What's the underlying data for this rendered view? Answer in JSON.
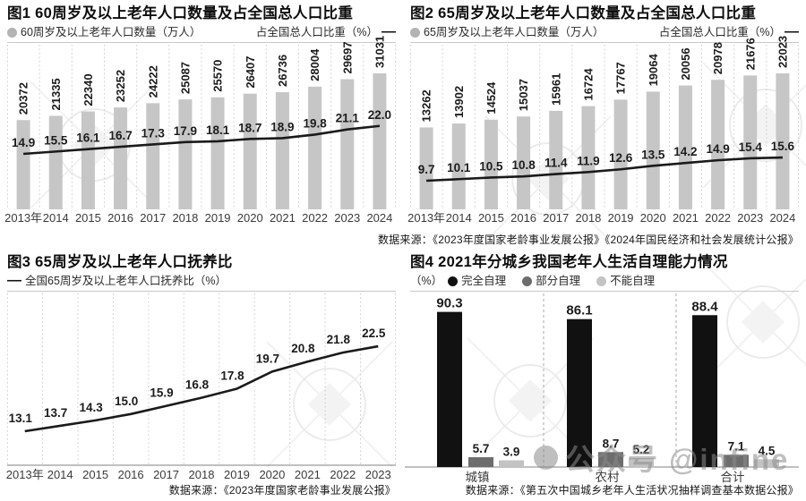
{
  "colors": {
    "bar": "#c6c6c6",
    "line": "#1a1a1a",
    "grid": "#c9c9c9",
    "axis": "#9a9a9a",
    "legend_dot": "#b3b3b3",
    "value_text": "#1c1c1c",
    "tick_text": "#3a3a3a"
  },
  "watermark": {
    "text": "公众号 @infine"
  },
  "chart_data": [
    {
      "type": "bar",
      "title": "图1 60周岁及以上老年人口数量及占全国总人口比重",
      "bar_legend": "60周岁及以上老年人口数量（万人）",
      "line_legend": "占全国总人口比重（%）",
      "categories": [
        "2013年",
        "2014",
        "2015",
        "2016",
        "2017",
        "2018",
        "2019",
        "2020",
        "2021",
        "2022",
        "2023",
        "2024"
      ],
      "bar_values": [
        20372,
        21335,
        22340,
        23252,
        24222,
        25087,
        25570,
        26407,
        26736,
        28004,
        29697,
        31031
      ],
      "line_values": [
        14.9,
        15.5,
        16.1,
        16.7,
        17.3,
        17.9,
        18.1,
        18.7,
        18.9,
        19.8,
        21.1,
        22.0
      ],
      "source": ""
    },
    {
      "type": "bar",
      "title": "图2 65周岁及以上老年人口数量及占全国总人口比重",
      "bar_legend": "65周岁及以上老年人口数量（万人）",
      "line_legend": "占全国总人口比重（%）",
      "categories": [
        "2013年",
        "2014",
        "2015",
        "2016",
        "2017",
        "2018",
        "2019",
        "2020",
        "2021",
        "2022",
        "2023",
        "2024"
      ],
      "bar_values": [
        13262,
        13902,
        14524,
        15037,
        15961,
        16724,
        17767,
        19064,
        20056,
        20978,
        21676,
        22023
      ],
      "line_values": [
        9.7,
        10.1,
        10.5,
        10.8,
        11.4,
        11.9,
        12.6,
        13.5,
        14.2,
        14.9,
        15.4,
        15.6
      ],
      "source": "数据来源：《2023年度国家老龄事业发展公报》《2024年国民经济和社会发展统计公报》"
    },
    {
      "type": "line",
      "title": "图3 65周岁及以上老年人口抚养比",
      "line_legend": "全国65周岁及以上老年人口抚养比（%）",
      "categories": [
        "2013年",
        "2014",
        "2015",
        "2016",
        "2017",
        "2018",
        "2019",
        "2020",
        "2021",
        "2022",
        "2023"
      ],
      "line_values": [
        13.1,
        13.7,
        14.3,
        15.0,
        15.9,
        16.8,
        17.8,
        19.7,
        20.8,
        21.8,
        22.5
      ],
      "source": "数据来源：《2023年度国家老龄事业发展公报》"
    },
    {
      "type": "bar",
      "title": "图4 2021年分城乡我国老年人生活自理能力情况",
      "unit_label": "（%）",
      "categories": [
        "城镇",
        "农村",
        "合计"
      ],
      "series": [
        {
          "name": "完全自理",
          "color": "#111111",
          "values": [
            90.3,
            86.1,
            88.4
          ]
        },
        {
          "name": "部分自理",
          "color": "#6d6d6d",
          "values": [
            5.7,
            8.7,
            7.1
          ]
        },
        {
          "name": "不能自理",
          "color": "#c3c3c3",
          "values": [
            3.9,
            5.2,
            4.5
          ]
        }
      ],
      "source": "数据来源：《第五次中国城乡老年人生活状况抽样调查基本数据公报》"
    }
  ]
}
